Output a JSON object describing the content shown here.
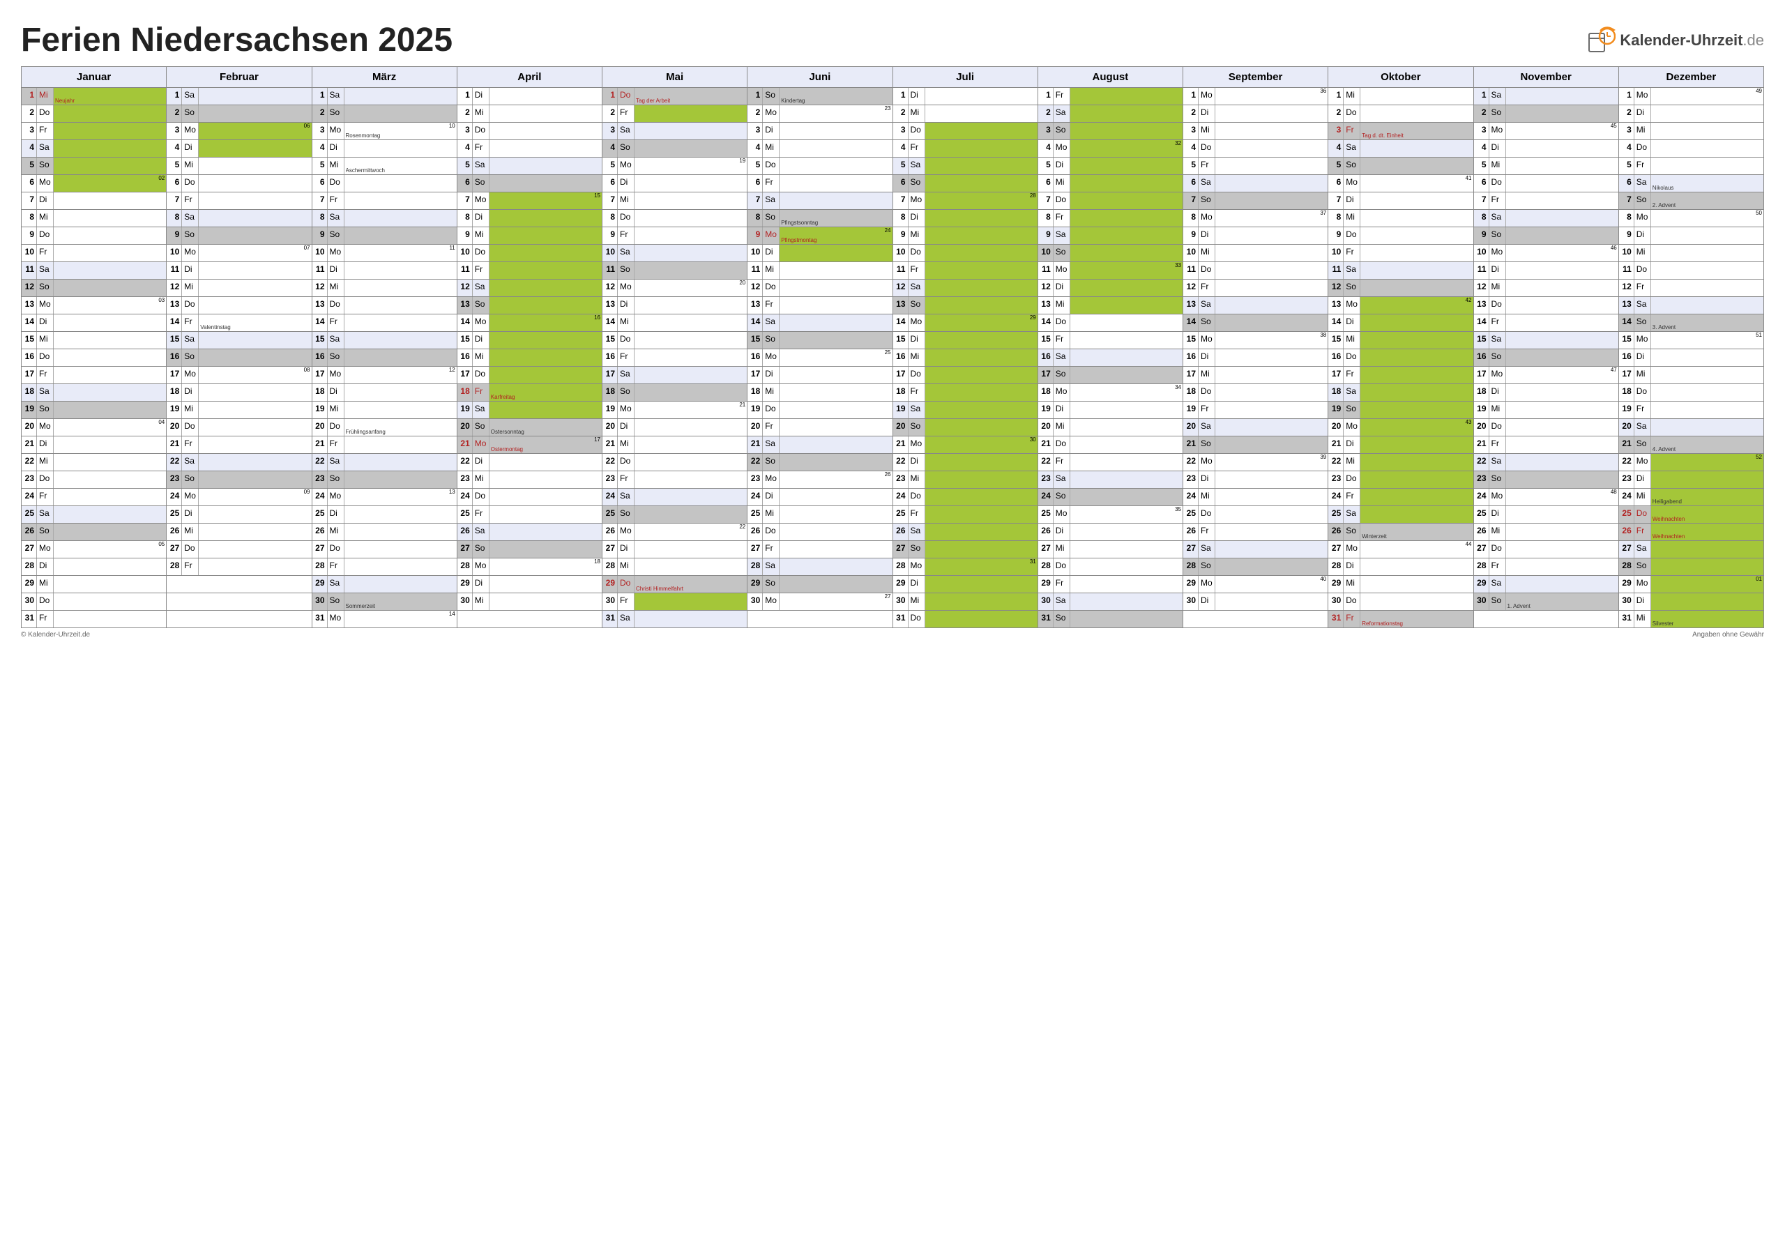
{
  "title": "Ferien Niedersachsen 2025",
  "logo_text_main": "Kalender-Uhrzeit",
  "logo_text_suffix": ".de",
  "footer_left": "© Kalender-Uhrzeit.de",
  "footer_right": "Angaben ohne Gewähr",
  "colors": {
    "holiday_bg": "#a4c639",
    "weekend_sat_bg": "#e8ebf8",
    "weekend_sun_bg": "#c4c4c4",
    "weekday_bg": "#ffffff",
    "header_bg": "#e8ebf8",
    "grid": "#888888",
    "red_text": "#b22222",
    "note_red": "#b22222",
    "note_default": "#333333",
    "logo_orange": "#f28c1e",
    "logo_gray": "#6a6a6a"
  },
  "months": [
    "Januar",
    "Februar",
    "März",
    "April",
    "Mai",
    "Juni",
    "Juli",
    "August",
    "September",
    "Oktober",
    "November",
    "Dezember"
  ],
  "month_lengths": [
    31,
    28,
    31,
    30,
    31,
    30,
    31,
    31,
    30,
    31,
    30,
    31
  ],
  "first_weekday": [
    2,
    5,
    5,
    1,
    3,
    6,
    1,
    4,
    0,
    2,
    5,
    0
  ],
  "weekday_abbr": [
    "Mo",
    "Di",
    "Mi",
    "Do",
    "Fr",
    "Sa",
    "So"
  ],
  "vacations": [
    {
      "m": 0,
      "from": 1,
      "to": 6
    },
    {
      "m": 1,
      "from": 3,
      "to": 4
    },
    {
      "m": 3,
      "from": 7,
      "to": 19
    },
    {
      "m": 4,
      "from": 2,
      "to": 2
    },
    {
      "m": 4,
      "from": 30,
      "to": 30
    },
    {
      "m": 5,
      "from": 9,
      "to": 10
    },
    {
      "m": 6,
      "from": 3,
      "to": 31
    },
    {
      "m": 7,
      "from": 1,
      "to": 13
    },
    {
      "m": 9,
      "from": 13,
      "to": 25
    },
    {
      "m": 11,
      "from": 22,
      "to": 31
    }
  ],
  "notes": {
    "0-1": {
      "t": "Neujahr",
      "r": 1,
      "hd": 1
    },
    "1-14": {
      "t": "Valentinstag"
    },
    "2-3": {
      "t": "Rosenmontag"
    },
    "2-5": {
      "t": "Aschermittwoch"
    },
    "2-20": {
      "t": "Frühlingsanfang"
    },
    "2-30": {
      "t": "Sommerzeit"
    },
    "3-18": {
      "t": "Karfreitag",
      "r": 1,
      "hd": 1
    },
    "3-20": {
      "t": "Ostersonntag"
    },
    "3-21": {
      "t": "Ostermontag",
      "r": 1,
      "hd": 1
    },
    "4-1": {
      "t": "Tag der Arbeit",
      "r": 1,
      "hd": 1
    },
    "4-29": {
      "t": "Christi Himmelfahrt",
      "r": 1,
      "hd": 1
    },
    "5-1": {
      "t": "Kindertag"
    },
    "5-8": {
      "t": "Pfingstsonntag"
    },
    "5-9": {
      "t": "Pfingstmontag",
      "r": 1,
      "hd": 1
    },
    "9-3": {
      "t": "Tag d. dt. Einheit",
      "r": 1,
      "hd": 1
    },
    "9-26": {
      "t": "Winterzeit"
    },
    "9-31": {
      "t": "Reformationstag",
      "r": 1,
      "hd": 1
    },
    "10-30": {
      "t": "1. Advent"
    },
    "11-6": {
      "t": "Nikolaus"
    },
    "11-7": {
      "t": "2. Advent"
    },
    "11-14": {
      "t": "3. Advent"
    },
    "11-21": {
      "t": "4. Advent"
    },
    "11-24": {
      "t": "Heiligabend"
    },
    "11-25": {
      "t": "Weihnachten",
      "r": 1,
      "hd": 1
    },
    "11-26": {
      "t": "Weihnachten",
      "r": 1,
      "hd": 1
    },
    "11-31": {
      "t": "Silvester"
    }
  },
  "week_numbers": {
    "0-6": "02",
    "0-13": "03",
    "0-20": "04",
    "0-27": "05",
    "1-3": "06",
    "1-10": "07",
    "1-17": "08",
    "1-24": "09",
    "2-3": "10",
    "2-10": "11",
    "2-17": "12",
    "2-24": "13",
    "2-31": "14",
    "3-7": "15",
    "3-14": "16",
    "3-21": "17",
    "3-28": "18",
    "4-5": "19",
    "4-12": "20",
    "4-19": "21",
    "4-26": "22",
    "5-2": "23",
    "5-9": "24",
    "5-16": "25",
    "5-23": "26",
    "5-30": "27",
    "6-7": "28",
    "6-14": "29",
    "6-21": "30",
    "6-28": "31",
    "7-4": "32",
    "7-11": "33",
    "7-18": "34",
    "7-25": "35",
    "8-1": "36",
    "8-8": "37",
    "8-15": "38",
    "8-22": "39",
    "8-29": "40",
    "9-6": "41",
    "9-13": "42",
    "9-20": "43",
    "9-27": "44",
    "10-3": "45",
    "10-10": "46",
    "10-17": "47",
    "10-24": "48",
    "11-1": "49",
    "11-8": "50",
    "11-15": "51",
    "11-22": "52",
    "11-29": "01"
  }
}
